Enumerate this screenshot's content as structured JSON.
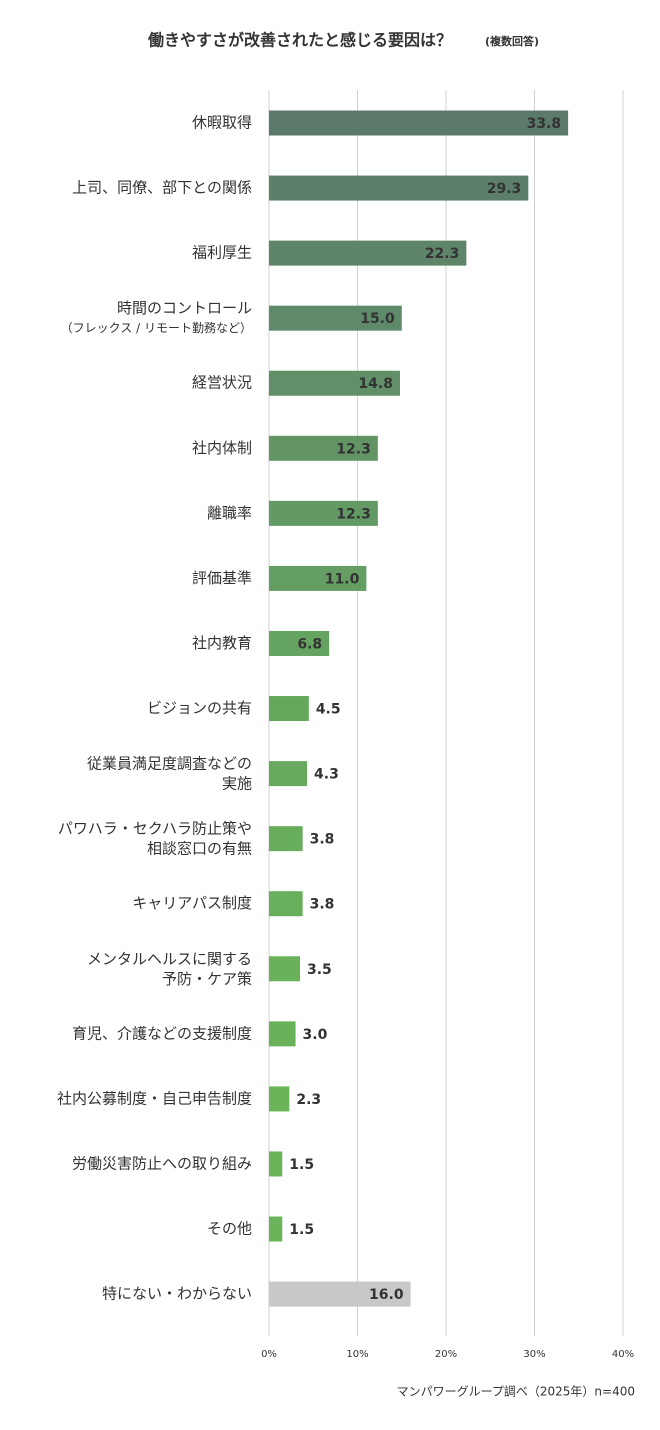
{
  "chart_data": {
    "type": "bar",
    "orientation": "horizontal",
    "title": "働きやすさが改善されたと感じる要因は？",
    "subtitle": "(複数回答)",
    "source": "マンパワーグループ調べ（2025年）n=400",
    "categories": [
      "休暇取得",
      "上司、同僚、部下との関係",
      "福利厚生",
      "時間のコントロール\n（フレックス / リモート勤務など）",
      "経営状況",
      "社内体制",
      "離職率",
      "評価基準",
      "社内教育",
      "ビジョンの共有",
      "従業員満足度調査などの\n実施",
      "パワハラ・セクハラ防止策や\n相談窓口の有無",
      "キャリアパス制度",
      "メンタルヘルスに関する\n予防・ケア策",
      "育児、介護などの支援制度",
      "社内公募制度・自己申告制度",
      "労働災害防止への取り組み",
      "その他",
      "特にない・わからない"
    ],
    "values": [
      33.8,
      29.3,
      22.3,
      15,
      14.8,
      12.3,
      12.3,
      11,
      6.8,
      4.5,
      4.3,
      3.8,
      3.8,
      3.5,
      3,
      2.3,
      1.5,
      1.5,
      16
    ],
    "value_labels": [
      "33.8",
      "29.3",
      "22.3",
      "15.0",
      "14.8",
      "12.3",
      "12.3",
      "11.0",
      "6.8",
      "4.5",
      "4.3",
      "3.8",
      "3.8",
      "3.5",
      "3.0",
      "2.3",
      "1.5",
      "1.5",
      "16.0"
    ],
    "colors": [
      "#5b7a6b",
      "#5c7f6b",
      "#5e846a",
      "#5f8a69",
      "#618f68",
      "#629466",
      "#639964",
      "#649e62",
      "#65a360",
      "#66a75e",
      "#67aa5d",
      "#68ad5c",
      "#68af5b",
      "#69b15a",
      "#69b25a",
      "#6ab459",
      "#6ab559",
      "#6ab559",
      "#c8c8c8"
    ],
    "xlim": [
      0,
      40
    ],
    "xticks": [
      {
        "value": 0,
        "label": "0%"
      },
      {
        "value": 10,
        "label": "10%"
      },
      {
        "value": 20,
        "label": "20%"
      },
      {
        "value": 30,
        "label": "30%"
      },
      {
        "value": 40,
        "label": "40%"
      }
    ],
    "grid": true
  }
}
